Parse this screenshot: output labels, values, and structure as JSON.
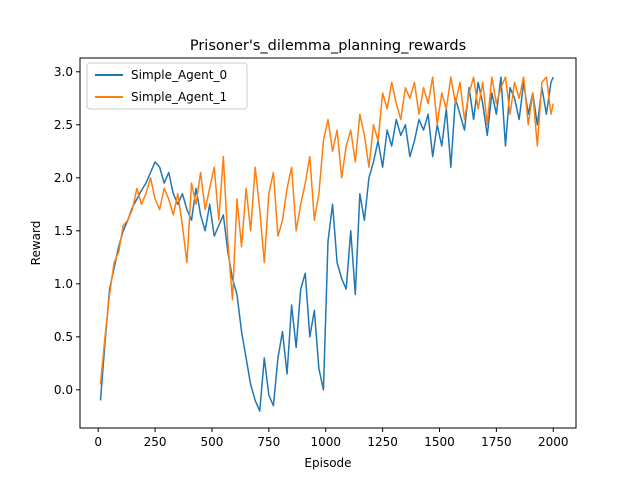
{
  "chart_data": {
    "type": "line",
    "title": "Prisoner's_dilemma_planning_rewards",
    "xlabel": "Episode",
    "ylabel": "Reward",
    "xlim": [
      -80,
      2100
    ],
    "ylim": [
      -0.36,
      3.13
    ],
    "xticks": [
      0,
      250,
      500,
      750,
      1000,
      1250,
      1500,
      1750,
      2000
    ],
    "yticks": [
      0.0,
      0.5,
      1.0,
      1.5,
      2.0,
      2.5,
      3.0
    ],
    "grid": false,
    "legend_position": "top-left",
    "series": [
      {
        "name": "Simple_Agent_0",
        "color": "#1f77b4",
        "x": [
          10,
          30,
          50,
          70,
          90,
          110,
          130,
          150,
          170,
          190,
          210,
          230,
          250,
          270,
          290,
          310,
          330,
          350,
          370,
          390,
          410,
          430,
          450,
          470,
          490,
          510,
          530,
          550,
          570,
          590,
          610,
          630,
          650,
          670,
          690,
          710,
          730,
          750,
          770,
          790,
          810,
          830,
          850,
          870,
          890,
          910,
          930,
          950,
          970,
          990,
          1010,
          1030,
          1050,
          1070,
          1090,
          1110,
          1130,
          1150,
          1170,
          1190,
          1210,
          1230,
          1250,
          1270,
          1290,
          1310,
          1330,
          1350,
          1370,
          1390,
          1410,
          1430,
          1450,
          1470,
          1490,
          1510,
          1530,
          1550,
          1570,
          1590,
          1610,
          1630,
          1650,
          1670,
          1690,
          1710,
          1730,
          1750,
          1770,
          1790,
          1810,
          1830,
          1850,
          1870,
          1890,
          1910,
          1930,
          1950,
          1970,
          1990,
          2000
        ],
        "y": [
          -0.1,
          0.45,
          0.95,
          1.15,
          1.35,
          1.5,
          1.6,
          1.72,
          1.8,
          1.88,
          1.95,
          2.05,
          2.15,
          2.1,
          1.95,
          2.05,
          1.85,
          1.75,
          1.85,
          1.7,
          1.6,
          1.9,
          1.65,
          1.5,
          1.75,
          1.45,
          1.55,
          1.65,
          1.3,
          1.05,
          0.9,
          0.55,
          0.3,
          0.05,
          -0.1,
          -0.2,
          0.3,
          -0.05,
          -0.15,
          0.3,
          0.55,
          0.15,
          0.8,
          0.4,
          0.95,
          1.1,
          0.5,
          0.75,
          0.2,
          0.0,
          1.4,
          1.75,
          1.2,
          1.05,
          0.95,
          1.5,
          0.9,
          1.85,
          1.6,
          2.0,
          2.15,
          2.35,
          2.1,
          2.45,
          2.3,
          2.55,
          2.4,
          2.5,
          2.2,
          2.35,
          2.55,
          2.45,
          2.6,
          2.2,
          2.5,
          2.3,
          2.65,
          2.1,
          2.75,
          2.6,
          2.45,
          2.85,
          2.55,
          2.9,
          2.7,
          2.4,
          2.8,
          2.6,
          2.95,
          2.3,
          2.85,
          2.75,
          2.55,
          2.9,
          2.6,
          2.8,
          2.5,
          2.85,
          2.6,
          2.9,
          2.95
        ]
      },
      {
        "name": "Simple_Agent_1",
        "color": "#ff7f0e",
        "x": [
          10,
          30,
          50,
          70,
          90,
          110,
          130,
          150,
          170,
          190,
          210,
          230,
          250,
          270,
          290,
          310,
          330,
          350,
          370,
          390,
          410,
          430,
          450,
          470,
          490,
          510,
          530,
          550,
          570,
          590,
          610,
          630,
          650,
          670,
          690,
          710,
          730,
          750,
          770,
          790,
          810,
          830,
          850,
          870,
          890,
          910,
          930,
          950,
          970,
          990,
          1010,
          1030,
          1050,
          1070,
          1090,
          1110,
          1130,
          1150,
          1170,
          1190,
          1210,
          1230,
          1250,
          1270,
          1290,
          1310,
          1330,
          1350,
          1370,
          1390,
          1410,
          1430,
          1450,
          1470,
          1490,
          1510,
          1530,
          1550,
          1570,
          1590,
          1610,
          1630,
          1650,
          1670,
          1690,
          1710,
          1730,
          1750,
          1770,
          1790,
          1810,
          1830,
          1850,
          1870,
          1890,
          1910,
          1930,
          1950,
          1970,
          1990,
          2000
        ],
        "y": [
          0.05,
          0.5,
          0.9,
          1.2,
          1.3,
          1.55,
          1.6,
          1.7,
          1.9,
          1.75,
          1.85,
          2.0,
          1.8,
          1.7,
          1.9,
          1.8,
          1.65,
          1.85,
          1.55,
          1.2,
          1.95,
          1.75,
          2.05,
          1.7,
          1.9,
          2.1,
          1.6,
          2.2,
          1.4,
          0.85,
          1.8,
          1.35,
          1.9,
          1.5,
          2.1,
          1.7,
          1.2,
          1.85,
          2.05,
          1.45,
          1.6,
          1.9,
          2.1,
          1.5,
          1.75,
          1.95,
          2.2,
          1.6,
          1.85,
          2.35,
          2.55,
          2.25,
          2.45,
          2.0,
          2.3,
          2.45,
          2.15,
          2.6,
          2.4,
          2.1,
          2.5,
          2.35,
          2.8,
          2.65,
          2.9,
          2.7,
          2.55,
          2.85,
          2.75,
          2.9,
          2.6,
          2.85,
          2.7,
          2.95,
          2.5,
          2.8,
          2.65,
          2.95,
          2.7,
          2.9,
          2.55,
          2.8,
          2.95,
          2.65,
          2.9,
          2.5,
          2.95,
          2.7,
          2.85,
          2.95,
          2.6,
          2.9,
          2.75,
          2.95,
          2.5,
          2.8,
          2.3,
          2.9,
          2.95,
          2.6,
          2.7
        ]
      }
    ]
  }
}
